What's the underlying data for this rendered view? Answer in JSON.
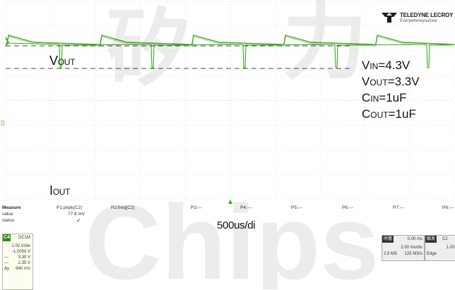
{
  "scope": {
    "brand_name": "TELEDYNE LECROY",
    "brand_tagline": "Everywhereyoulook",
    "trace_colors": {
      "voltage": "#3aaa1f",
      "current": "#3aaa1f"
    }
  },
  "annotations": {
    "vout_main": "V",
    "vout_sub": "OUT",
    "iout_main": "I",
    "iout_sub": "OUT",
    "time_div": "500us/di",
    "params": [
      {
        "main": "V",
        "sub": "IN",
        "rest": "=4.3V"
      },
      {
        "main": "V",
        "sub": "OUT",
        "rest": "=3.3V"
      },
      {
        "main": "C",
        "sub": "IN",
        "rest": "=1uF"
      },
      {
        "main": "C",
        "sub": "OUT",
        "rest": "=1uF"
      }
    ]
  },
  "measure": {
    "headers": [
      "Measure",
      "value",
      "status"
    ],
    "columns": [
      {
        "name": "P1:pkpk(C2)",
        "value": "77.8 mV",
        "status": "✓"
      },
      {
        "name": "P2:freq(C2)",
        "value": "",
        "status": ""
      },
      {
        "name": "P3:---",
        "value": "",
        "status": ""
      },
      {
        "name": "P4:---",
        "value": "",
        "status": ""
      },
      {
        "name": "P5:---",
        "value": "",
        "status": ""
      },
      {
        "name": "P6:---",
        "value": "",
        "status": ""
      },
      {
        "name": "P7:---",
        "value": "",
        "status": ""
      },
      {
        "name": "P8:---",
        "value": "",
        "status": ""
      }
    ]
  },
  "channel": {
    "tag": "C4",
    "coupling": "DC1M",
    "vdiv": "1.00 V/div",
    "offset": "-1.0050 V",
    "cursor1_label": "---",
    "cursor1": "3.30 V",
    "cursor2_label": "---",
    "cursor2": "2.35 V",
    "delta_label": "Δy",
    "delta": "-940 mV"
  },
  "timebase": {
    "header": "时基",
    "delay": "0.00 ms",
    "tdiv": "2.00 ms/div",
    "points": "2.5 MS",
    "rate": "125 MS/s"
  },
  "trigger": {
    "header": "触发",
    "channel": "C2",
    "level": "1.00",
    "mode": "Edge"
  },
  "watermark": {
    "chars": [
      "矽",
      "力",
      "Chips"
    ]
  }
}
